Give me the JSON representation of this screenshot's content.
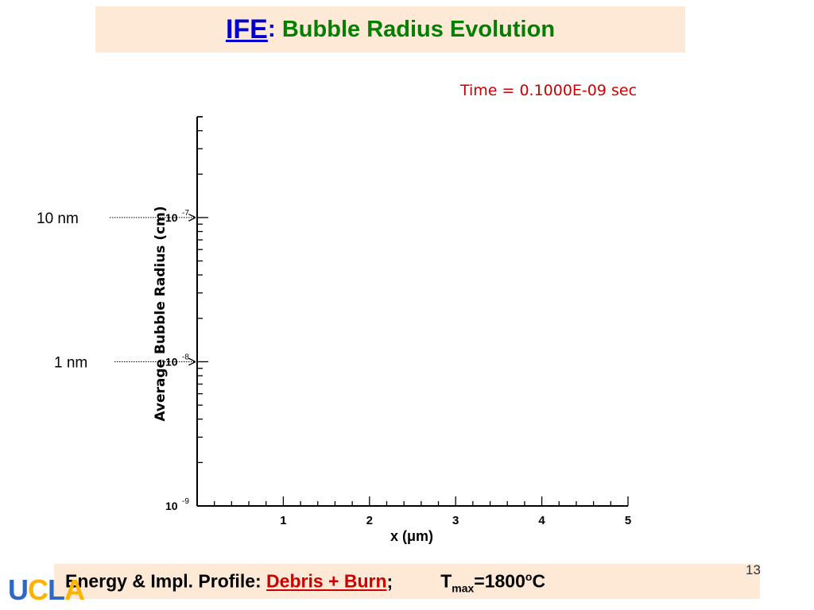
{
  "title": {
    "prefix": "IFE",
    "colon": ":",
    "main": "Bubble Radius Evolution"
  },
  "chart_data": {
    "type": "line",
    "title": "Time = 0.1000E-09 sec",
    "xlabel": "x (μm)",
    "ylabel": "Average Bubble Radius (cm)",
    "xlim": [
      0,
      5
    ],
    "ylim": [
      1e-09,
      5e-07
    ],
    "yscale": "log",
    "x_ticks": [
      1,
      2,
      3,
      4,
      5
    ],
    "x_tick_labels": [
      "1",
      "2",
      "3",
      "4",
      "5"
    ],
    "y_ticks": [
      1e-09,
      1e-08,
      1e-07
    ],
    "y_tick_labels": [
      {
        "base": "10",
        "exp": "-9"
      },
      {
        "base": "10",
        "exp": "-8"
      },
      {
        "base": "10",
        "exp": "-7"
      }
    ],
    "grid": false,
    "series": [],
    "annotations": [
      {
        "text": "10 nm",
        "value": 1e-07
      },
      {
        "text": "1 nm",
        "value": 1e-08
      }
    ],
    "colors": {
      "title": "#cc0000",
      "axis": "#000000"
    }
  },
  "footer": {
    "label": "Energy & Impl. Profile: ",
    "link": "Debris + Burn",
    "sep": ";",
    "tmax_T": "T",
    "tmax_sub": "max",
    "tmax_eq": "=1800",
    "tmax_sup": "o",
    "tmax_unit": "C"
  },
  "page_number": "13",
  "logo": {
    "u": "U",
    "c": "C",
    "l": "L",
    "a": "A"
  }
}
